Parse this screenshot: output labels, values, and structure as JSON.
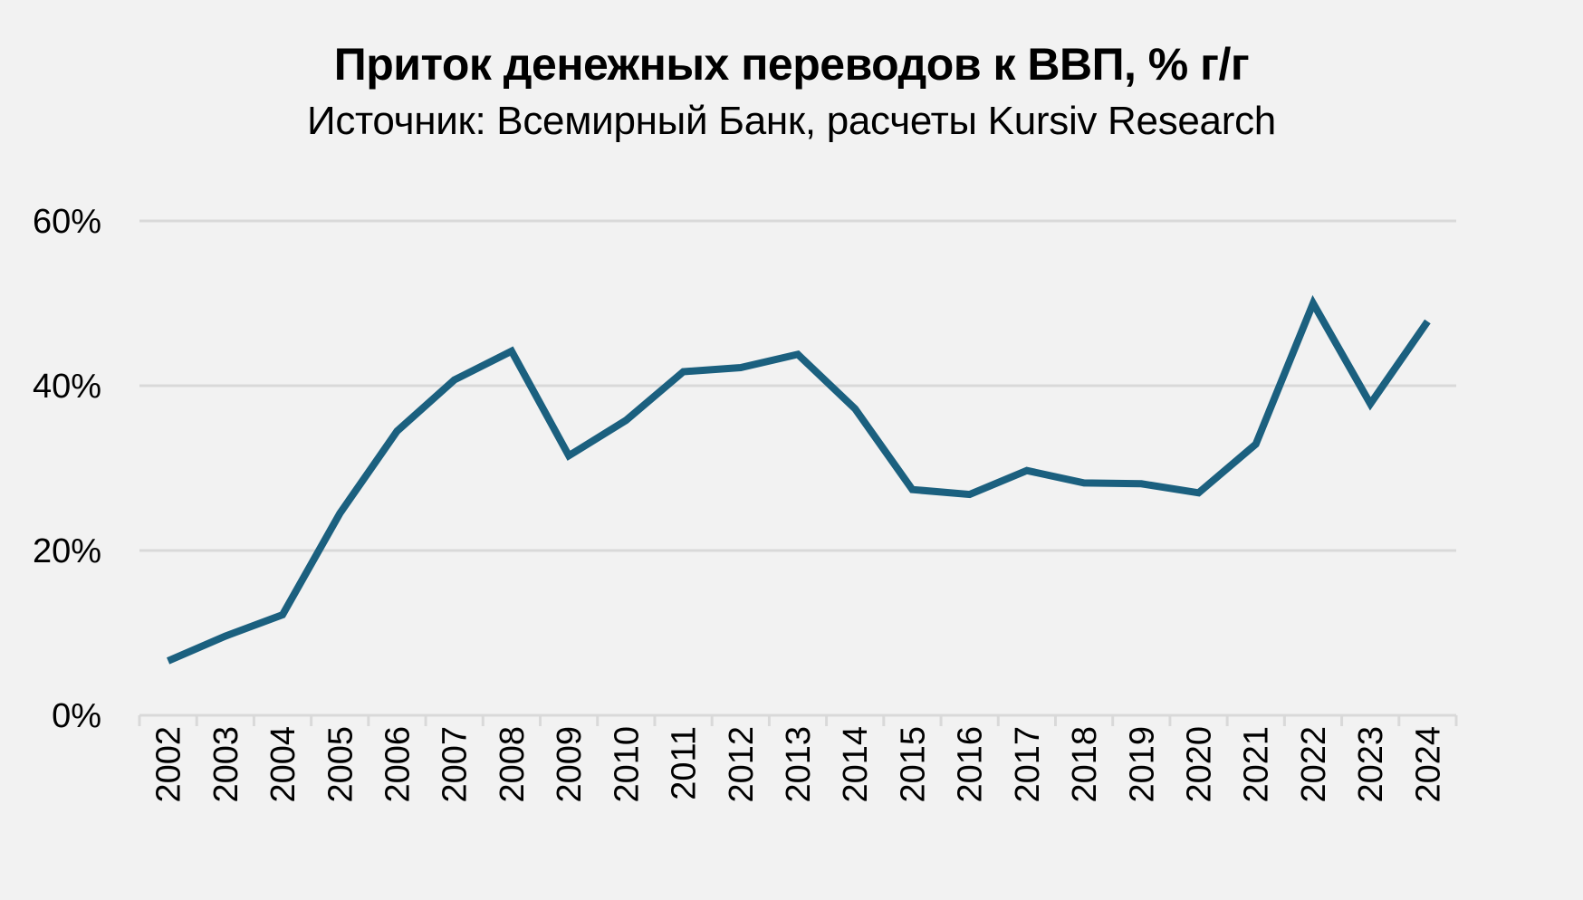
{
  "chart_data": {
    "type": "line",
    "title": "Приток денежных переводов к ВВП, % г/г",
    "subtitle": "Источник: Всемирный Банк, расчеты Kursiv Research",
    "xlabel": "",
    "ylabel": "",
    "x": [
      "2002",
      "2003",
      "2004",
      "2005",
      "2006",
      "2007",
      "2008",
      "2009",
      "2010",
      "2011",
      "2012",
      "2013",
      "2014",
      "2015",
      "2016",
      "2017",
      "2018",
      "2019",
      "2020",
      "2021",
      "2022",
      "2023",
      "2024"
    ],
    "series": [
      {
        "name": "",
        "values": [
          6.6,
          9.6,
          12.2,
          24.5,
          34.5,
          40.7,
          44.2,
          31.5,
          35.8,
          41.7,
          42.2,
          43.8,
          37.2,
          27.4,
          26.8,
          29.7,
          28.2,
          28.1,
          27.0,
          32.9,
          50.0,
          37.8,
          47.8
        ]
      }
    ],
    "ylim": [
      0,
      60
    ],
    "yticks": [
      0,
      20,
      40,
      60
    ],
    "ytick_labels": [
      "0%",
      "20%",
      "40%",
      "60%"
    ],
    "grid": true,
    "legend": "none",
    "line_color": "#1b607f",
    "grid_color": "#d9d9d9",
    "background": "#f2f2f2"
  }
}
